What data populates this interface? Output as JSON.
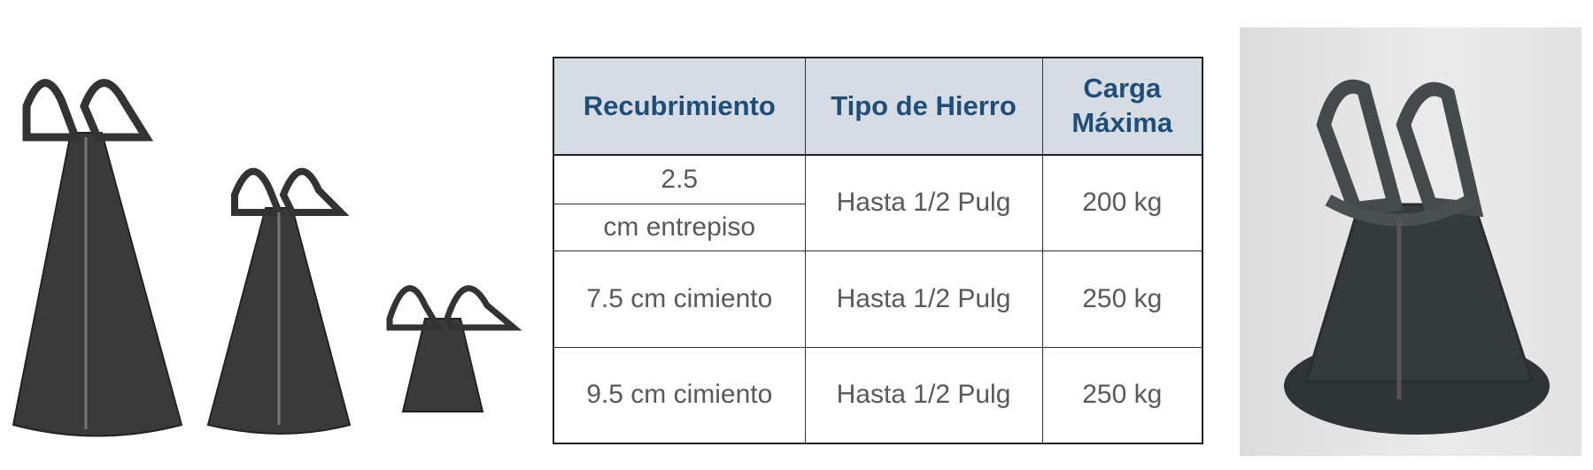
{
  "table": {
    "headers": [
      "Recubrimiento",
      "Tipo de Hierro",
      "Carga Máxima"
    ],
    "header_carga_line1": "Carga",
    "header_carga_line2": "Máxima",
    "rows": [
      {
        "recubrimiento_line1": "2.5",
        "recubrimiento_line2": "cm entrepiso",
        "tipo": "Hasta 1/2 Pulg",
        "carga": "200 kg"
      },
      {
        "recubrimiento": "7.5 cm cimiento",
        "tipo": "Hasta 1/2 Pulg",
        "carga": "250 kg"
      },
      {
        "recubrimiento": "9.5 cm cimiento",
        "tipo": "Hasta 1/2 Pulg",
        "carga": "250 kg"
      }
    ]
  },
  "colors": {
    "header_bg": "#d6dce4",
    "header_text": "#1f4e79",
    "body_text": "#595959"
  }
}
